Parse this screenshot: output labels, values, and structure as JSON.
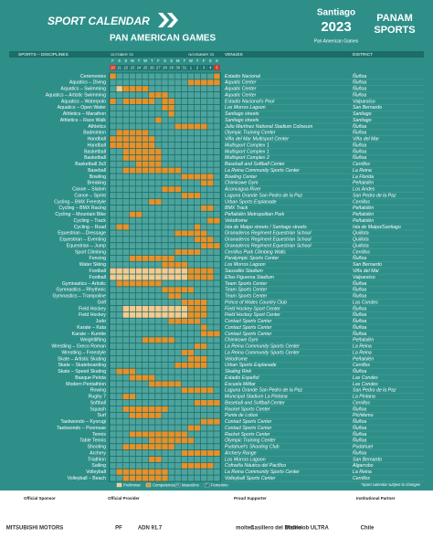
{
  "header": {
    "title": "SPORT CALENDAR",
    "subtitle": "PAN AMERICAN GAMES",
    "brand_city": "Santiago",
    "brand_year": "2023",
    "brand_tag": "Pan American Games",
    "partner_top": "PANAM",
    "partner_bottom": "SPORTS"
  },
  "columns": {
    "sports": "SPORTS – DISCIPLINES",
    "venues": "VENUES",
    "district": "DISTRICT"
  },
  "calendar": {
    "months": [
      "OCTOBER '23",
      "NOVEMBER '23"
    ],
    "weekdays": [
      "F",
      "S",
      "S",
      "M",
      "T",
      "W",
      "T",
      "F",
      "S",
      "S",
      "M",
      "T",
      "W",
      "T",
      "F",
      "S",
      "S"
    ],
    "days": [
      "20",
      "21",
      "22",
      "23",
      "24",
      "25",
      "26",
      "27",
      "28",
      "29",
      "30",
      "31",
      "1",
      "2",
      "3",
      "4",
      "5"
    ]
  },
  "legend": [
    {
      "code": "p",
      "label": "Preliminar",
      "color": "#f6c98f"
    },
    {
      "code": "c",
      "label": "Competencia",
      "color": "#e8902a"
    },
    {
      "code": "M",
      "label": "Masculino"
    },
    {
      "code": "F",
      "label": "Femenino"
    }
  ],
  "rows": [
    {
      "sport": "Ceremonies",
      "venue": "Estadio Nacional",
      "district": "Ñuñoa",
      "schedule": "c...............c"
    },
    {
      "sport": "Aquatics – Diving",
      "venue": "Aquatic Center",
      "district": "Ñuñoa",
      "schedule": "............ccccc"
    },
    {
      "sport": "Aquatics – Swimming",
      "venue": "Aquatic Center",
      "district": "Ñuñoa",
      "schedule": ".pcccc..........."
    },
    {
      "sport": "Aquatics – Artistic Swimming",
      "venue": "Aquatic Center",
      "district": "Ñuñoa",
      "schedule": "......ccc........"
    },
    {
      "sport": "Aquatics – Waterpolo",
      "venue": "Estadio Nacional's Pool",
      "district": "Valparaíso",
      "schedule": "c.ccccc.cc......."
    },
    {
      "sport": "Aquatics – Open Water",
      "venue": "Los Morros Lagoon",
      "district": "San Bernardo",
      "schedule": "........cc......."
    },
    {
      "sport": "Athletics – Marathon",
      "venue": "Santiago streets",
      "district": "Santiago",
      "schedule": ".........c......."
    },
    {
      "sport": "Athletics – Race Walk",
      "venue": "Santiago streets",
      "district": "Santiago",
      "schedule": ".......c........."
    },
    {
      "sport": "Athletics",
      "venue": "Julio Martínez National Stadium Coliseum",
      "district": "Ñuñoa",
      "schedule": "..........ccccc.."
    },
    {
      "sport": "Badminton",
      "venue": "Olympic Training Center",
      "district": "Ñuñoa",
      "schedule": ".ccccc..........."
    },
    {
      "sport": "Handball",
      "venue": "Viña del Mar Multisport Center",
      "district": "Viña del Mar",
      "schedule": "ccccccc.........."
    },
    {
      "sport": "Handball",
      "venue": "Multisport Complex 1",
      "district": "Ñuñoa",
      "schedule": "ccccccc.........."
    },
    {
      "sport": "Basketball",
      "venue": "Multisport Complex 1",
      "district": "Ñuñoa",
      "schedule": "..cccccc........."
    },
    {
      "sport": "Basketball",
      "venue": "Multisport Complex 2",
      "district": "Ñuñoa",
      "schedule": "..cccccc........."
    },
    {
      "sport": "Basketball 3x3",
      "venue": "Baseball and Softball Center",
      "district": "Cerrillos",
      "schedule": "....cccc........."
    },
    {
      "sport": "Baseball",
      "venue": "La Reina Community Sports Center",
      "district": "La Reina",
      "schedule": "..ccccccccc......"
    },
    {
      "sport": "Bowling",
      "venue": "Bowling Center",
      "district": "La Florida",
      "schedule": "...........ccccc."
    },
    {
      "sport": "Breaking",
      "venue": "Chimkowe Gym",
      "district": "Peñalolén",
      "schedule": "..............cc."
    },
    {
      "sport": "Canoe – Slalom",
      "venue": "Aconcagua River",
      "district": "Los Andes",
      "schedule": "........ccc......"
    },
    {
      "sport": "Canoe – Sprint",
      "venue": "Laguna Grande San Pedro de la Paz",
      "district": "San Pedro de la Paz",
      "schedule": "...........ccc..."
    },
    {
      "sport": "Cycling – BMX Freestyle",
      "venue": "Urban Sports Esplanade",
      "district": "Cerrillos",
      "schedule": "......cc........."
    },
    {
      "sport": "Cycling – BMX Racing",
      "venue": "BMX Track",
      "district": "Peñalolén",
      "schedule": "..............cc."
    },
    {
      "sport": "Cycling – Mountain Bike",
      "venue": "Peñalolén Metropolitan Park",
      "district": "Peñalolén",
      "schedule": "...cc............"
    },
    {
      "sport": "Cycling – Track",
      "venue": "Velodrome",
      "district": "Peñalolén",
      "schedule": "...............cc"
    },
    {
      "sport": "Cycling – Road",
      "venue": "Isla de Maipo streets / Santiago streets",
      "district": "Isla de Maipo/Santiago",
      "schedule": ".cc..........c..."
    },
    {
      "sport": "Equestrian – Dressage",
      "venue": "Granaderos Regiment Equestrian School",
      "district": "Quillota",
      "schedule": "..........ccccc.."
    },
    {
      "sport": "Equestrian – Eventing",
      "venue": "Granaderos Regiment Equestrian School",
      "district": "Quillota",
      "schedule": ".............ccc."
    },
    {
      "sport": "Equestrian – Jump",
      "venue": "Granaderos Regiment Equestrian School",
      "district": "Quillota",
      "schedule": "..............ccc"
    },
    {
      "sport": "Sport Climbing",
      "venue": "Cerrillos Park Climbing Walls",
      "district": "Cerrillos",
      "schedule": "..........cccc..."
    },
    {
      "sport": "Fencing",
      "venue": "Paralympic Sports Center",
      "district": "Ñuñoa",
      "schedule": "...ccccccc......."
    },
    {
      "sport": "Water Skiing",
      "venue": "Los Morros Lagoon",
      "district": "San Bernardo",
      "schedule": "........cccc....."
    },
    {
      "sport": "Football",
      "venue": "Sausalito Stadium",
      "district": "Viña del Mar",
      "schedule": "ppppppppppppcccc."
    },
    {
      "sport": "Football",
      "venue": "Elías Figueroa Stadium",
      "district": "Valparaíso",
      "schedule": "ppppppppppppcccc."
    },
    {
      "sport": "Gymnastics – Artistic",
      "venue": "Team Sports Center",
      "district": "Ñuñoa",
      "schedule": ".ccccccc........."
    },
    {
      "sport": "Gymnastics – Rhythmic",
      "venue": "Team Sports Center",
      "district": "Ñuñoa",
      "schedule": "........ccccc...."
    },
    {
      "sport": "Gymnastics – Trampoline",
      "venue": "Team Sports Center",
      "district": "Ñuñoa",
      "schedule": ".........cc......"
    },
    {
      "sport": "Golf",
      "venue": "Prince of Wales Country Club",
      "district": "Las Condes",
      "schedule": "...........cccc.."
    },
    {
      "sport": "Field Hockey",
      "venue": "Field Hockey Sport Center",
      "district": "Ñuñoa",
      "schedule": "..ppppppppppccc.."
    },
    {
      "sport": "Field Hockey",
      "venue": "Field Hockey Sport Center",
      "district": "Ñuñoa",
      "schedule": "..ppppppppppccc.."
    },
    {
      "sport": "Judo",
      "venue": "Contact Sports Center",
      "district": "Ñuñoa",
      "schedule": ".........ccccc..."
    },
    {
      "sport": "Karate – Kata",
      "venue": "Contact Sports Center",
      "district": "Ñuñoa",
      "schedule": "..............c.."
    },
    {
      "sport": "Karate – Kumite",
      "venue": "Contact Sports Center",
      "district": "Ñuñoa",
      "schedule": "..............ccc"
    },
    {
      "sport": "Weightlifting",
      "venue": "Chimkowe Gym",
      "district": "Peñalolén",
      "schedule": ".....ccccc......."
    },
    {
      "sport": "Wrestling – Greco Roman",
      "venue": "La Reina Community Sports Center",
      "district": "La Reina",
      "schedule": ".............cc.."
    },
    {
      "sport": "Wrestling – Freestyle",
      "venue": "La Reina Community Sports Center",
      "district": "La Reina",
      "schedule": "...........cc...."
    },
    {
      "sport": "Skate – Artistic Skating",
      "venue": "Velodrome",
      "district": "Peñalolén",
      "schedule": "............ccc.."
    },
    {
      "sport": "Skate – Skateboarding",
      "venue": "Urban Sports Esplanade",
      "district": "Cerrillos",
      "schedule": "..........ccccc.."
    },
    {
      "sport": "Skate – Speed Skating",
      "venue": "Skating Rink",
      "district": "Ñuñoa",
      "schedule": ".ccc............."
    },
    {
      "sport": "Basque Pelota",
      "venue": "Estadio Español",
      "district": "Las Condes",
      "schedule": "...cccc.........."
    },
    {
      "sport": "Modern Pentathlon",
      "venue": "Escuela Militar",
      "district": "Las Condes",
      "schedule": "......ccccc......"
    },
    {
      "sport": "Rowing",
      "venue": "Laguna Grande San Pedro de la Paz",
      "district": "San Pedro de la Paz",
      "schedule": "...........ccccc."
    },
    {
      "sport": "Rugby 7",
      "venue": "Municipal Stadium La Pintana",
      "district": "La Pintana",
      "schedule": "..cc............."
    },
    {
      "sport": "Softball",
      "venue": "Baseball and Softball Center",
      "district": "Cerrillos",
      "schedule": ".............cccc"
    },
    {
      "sport": "Squash",
      "venue": "Racket Sports Center",
      "district": "Ñuñoa",
      "schedule": "..ccccccc........"
    },
    {
      "sport": "Surf",
      "venue": "Punta de Lobos",
      "district": "Pichilemu",
      "schedule": "...ccccc........."
    },
    {
      "sport": "Taekwondo – Kyorugi",
      "venue": "Contact Sports Center",
      "district": "Ñuñoa",
      "schedule": "..............ccc"
    },
    {
      "sport": "Taekwondo – Poomsae",
      "venue": "Contact Sports Center",
      "district": "Ñuñoa",
      "schedule": "............cc..."
    },
    {
      "sport": "Tennis",
      "venue": "Racket Sports Center",
      "district": "Ñuñoa",
      "schedule": "...ccccccccc....."
    },
    {
      "sport": "Table Tennis",
      "venue": "Olympic Training Center",
      "district": "Ñuñoa",
      "schedule": "......ccccccc...."
    },
    {
      "sport": "Shooting",
      "venue": "Pudahuel's Shooting Club",
      "district": "Pudahuel",
      "schedule": "..cccccccc......."
    },
    {
      "sport": "Archery",
      "venue": "Archery Range",
      "district": "Ñuñoa",
      "schedule": "...........cccccc"
    },
    {
      "sport": "Triathlon",
      "venue": "Los Morros Lagoon",
      "district": "San Bernardo",
      "schedule": "......cc........."
    },
    {
      "sport": "Sailing",
      "venue": "Cofradía Náutica del Pacífico",
      "district": "Algarrobo",
      "schedule": "...........ccccc."
    },
    {
      "sport": "Volleyball",
      "venue": "La Reina Community Sports Center",
      "district": "La Reina",
      "schedule": ".cccccccc........"
    },
    {
      "sport": "Volleyball – Beach",
      "venue": "Volleyball Sports Center",
      "district": "Cerrillos",
      "schedule": "..ccccccc........"
    }
  ],
  "note": "*Sport calendar subject to changes",
  "footer": [
    {
      "title": "Official Sponsor",
      "logos": [
        "MITSUBISHI MOTORS"
      ]
    },
    {
      "title": "Official Provider",
      "logos": [
        "PF",
        "ADN 91.7"
      ]
    },
    {
      "title": "Proud Supporter",
      "logos": [
        "molten",
        "Casillero del Diablo",
        "Michelob ULTRA"
      ]
    },
    {
      "title": "Institutional Partner",
      "logos": [
        "Chile"
      ]
    }
  ]
}
